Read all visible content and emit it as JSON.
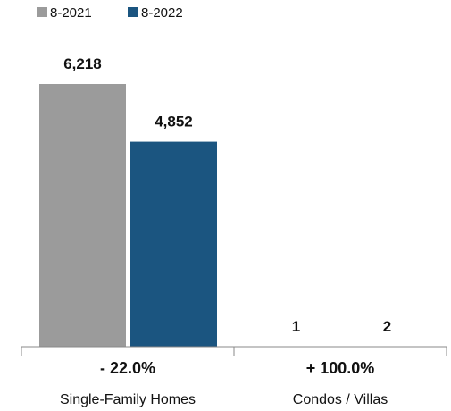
{
  "chart_data": {
    "type": "bar",
    "legend_position": "top-left",
    "grid": false,
    "categories": [
      "Single-Family Homes",
      "Condos / Villas"
    ],
    "series": [
      {
        "name": "8-2021",
        "color": "#9b9b9b",
        "values": [
          6218,
          1
        ],
        "labels": [
          "6,218",
          "1"
        ]
      },
      {
        "name": "8-2022",
        "color": "#1b5580",
        "values": [
          4852,
          2
        ],
        "labels": [
          "4,852",
          "2"
        ]
      }
    ],
    "changes": [
      "- 22.0%",
      "+ 100.0%"
    ],
    "ylim": [
      0,
      6218
    ]
  }
}
